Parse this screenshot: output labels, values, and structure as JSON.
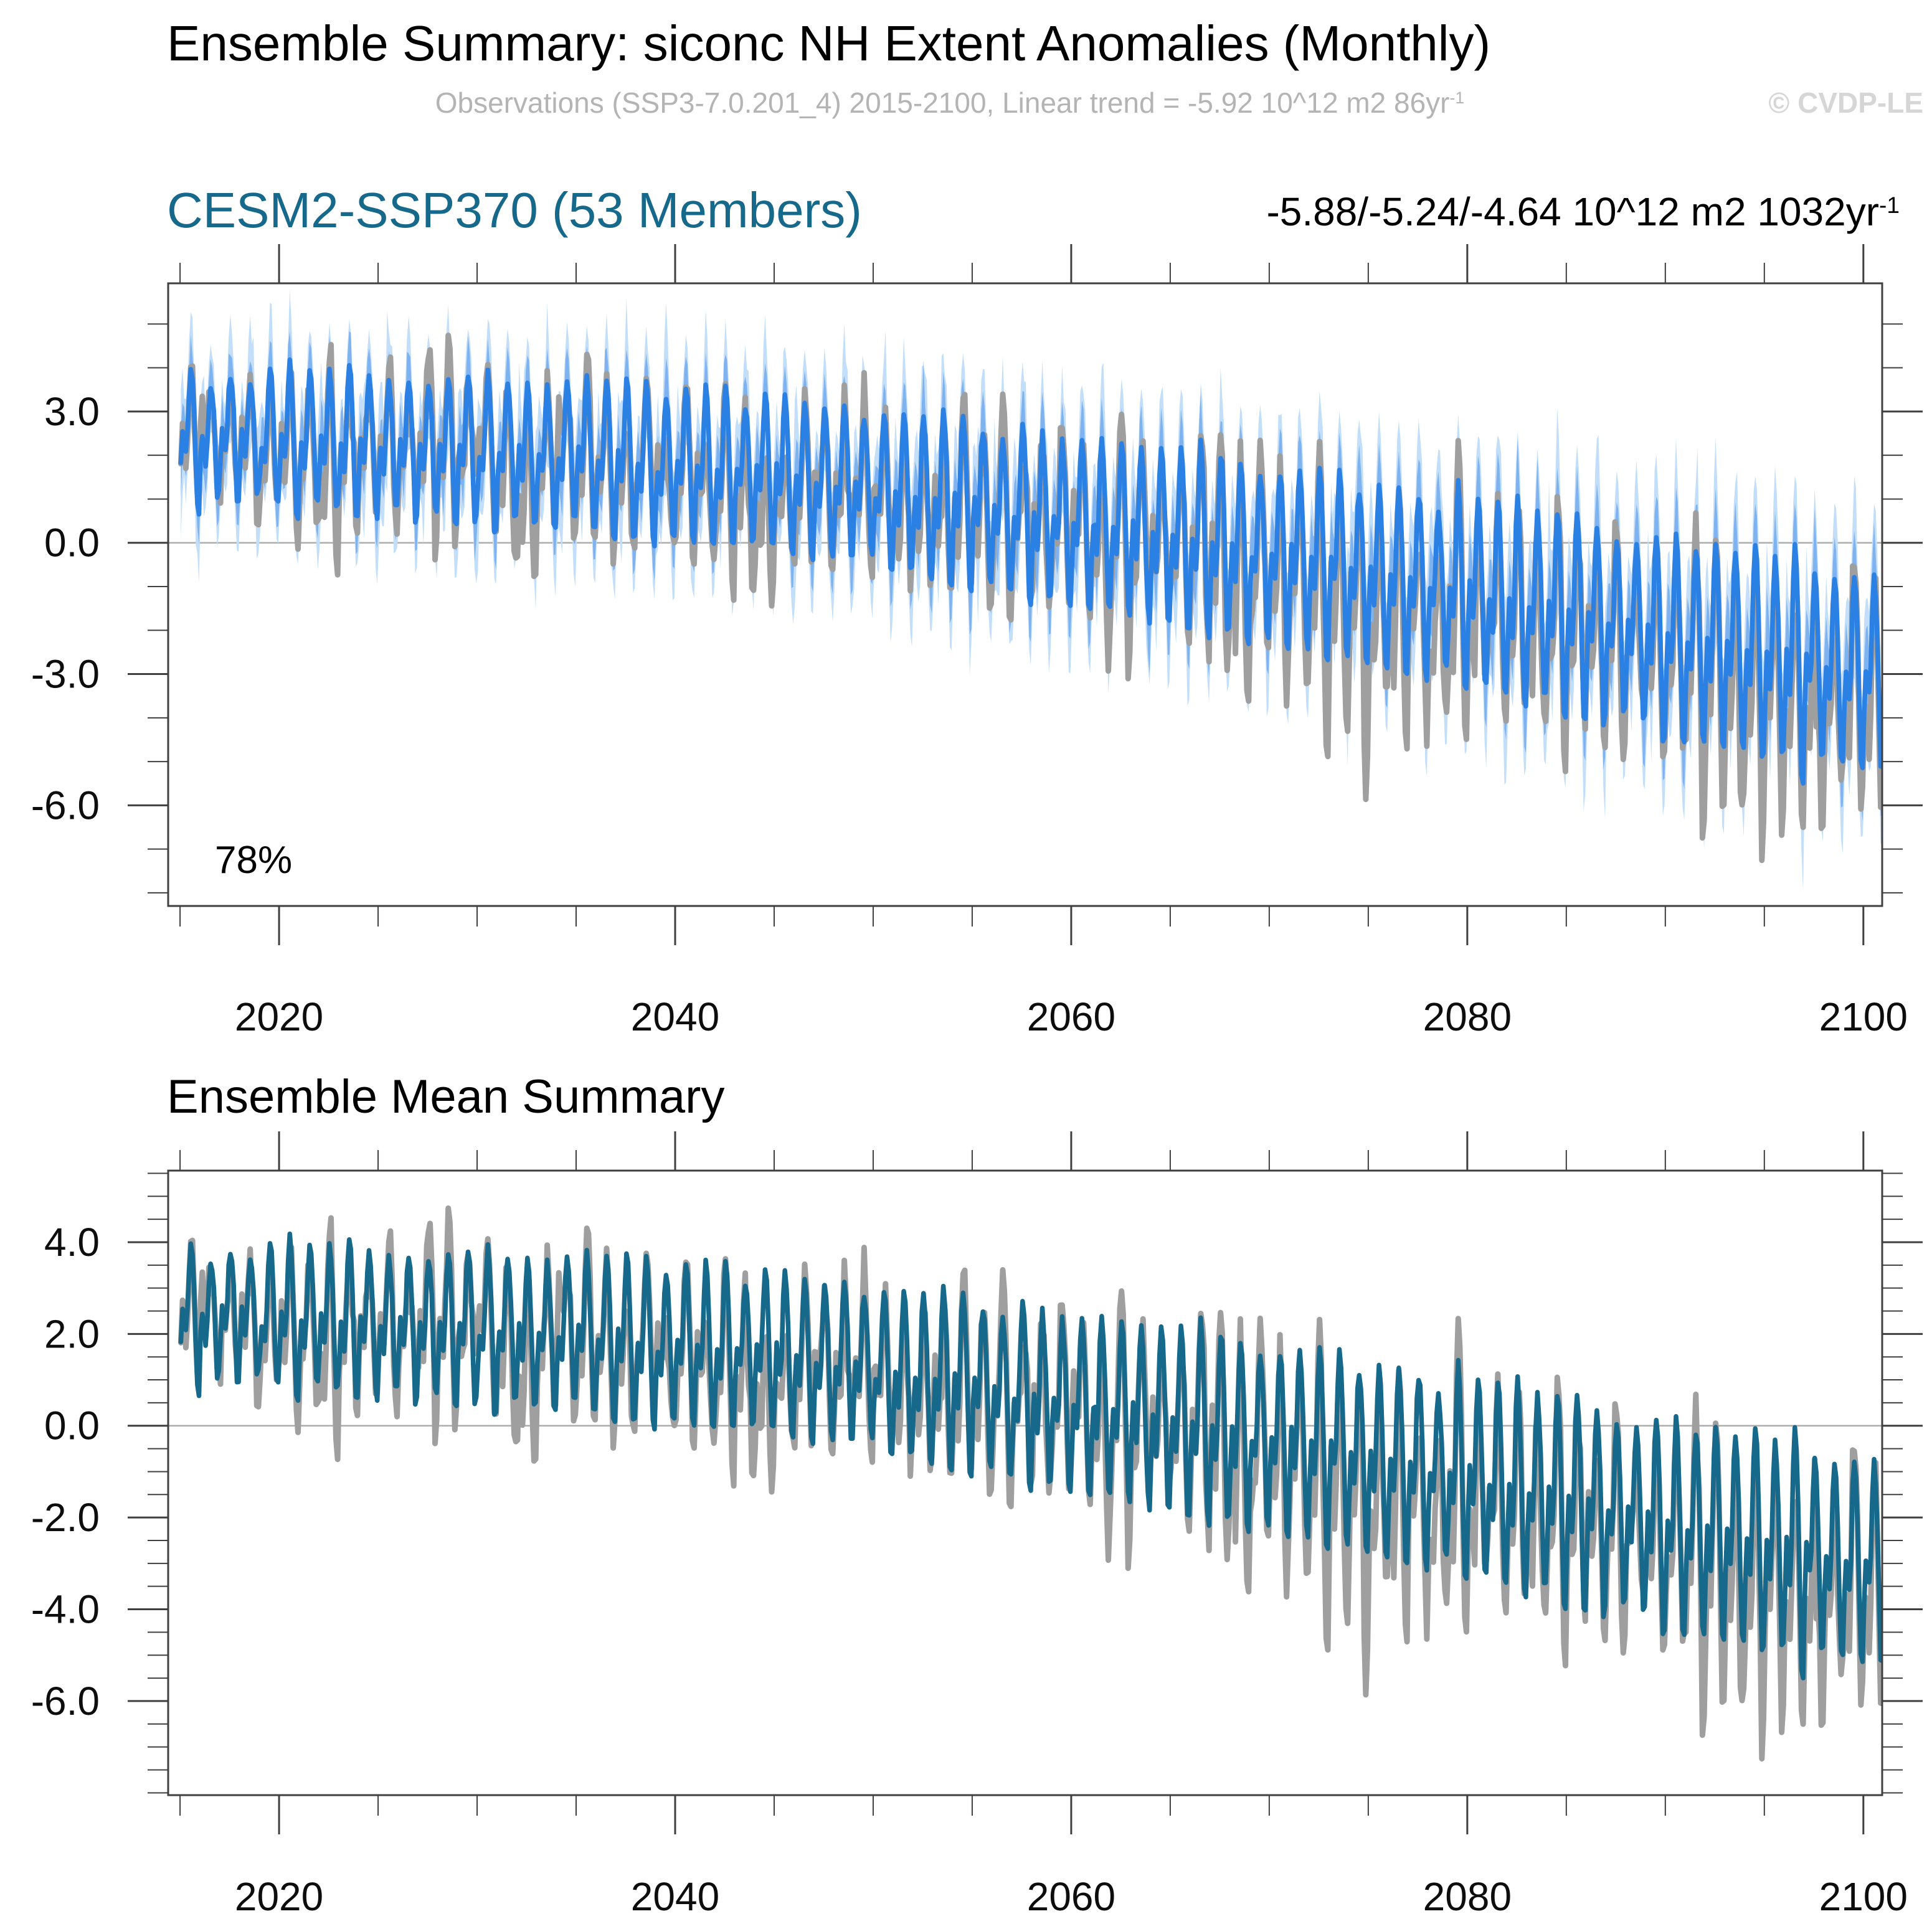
{
  "header": {
    "title": "Ensemble Summary: siconc NH Extent Anomalies (Monthly)",
    "subtitle": "Observations (SSP3-7.0.201_4) 2015-2100, Linear trend = -5.92 10^12 m2 86yr",
    "subtitle_sup": "-1",
    "watermark": "© CVDP-LE",
    "trend_text": "-5.88/-5.24/-4.64 10^12 m2 1032yr",
    "trend_sup": "-1"
  },
  "chart_data": {
    "type": "line",
    "title": "Ensemble Summary: siconc NH Extent Anomalies (Monthly)",
    "x_unit": "year",
    "x_start": 2015,
    "x_end": 2101,
    "points_per_year": 12,
    "xlim": [
      2014.4,
      2100.95
    ],
    "xticks": [
      2020,
      2040,
      2060,
      2080,
      2100
    ],
    "xtick_minor_step": 5,
    "grid": false,
    "legend": "none",
    "season_harmonics": [
      [
        1,
        0.62,
        -1.35
      ],
      [
        2,
        0.38,
        0.75
      ],
      [
        3,
        0.12,
        0.1
      ]
    ],
    "series": {
      "observations": {
        "label": "Observations (SSP3-7.0.201_4)",
        "color": "#9F9F9F",
        "line_width": 9,
        "trend_per_86yr": -5.92,
        "base_start": 2.4,
        "base_end": -3.55,
        "base_curve": 1.45,
        "amp_start": 1.55,
        "amp_end": 2.55,
        "amp_jitter": 0.2,
        "noise_sigma": 0.34,
        "noise_rho": 0.55,
        "spike_prob": 0.035,
        "seed": 13,
        "bumps": [
          {
            "c": 2029,
            "w": 2.2,
            "a": 0.55
          },
          {
            "c": 2032.2,
            "w": 0.9,
            "a": -0.9
          },
          {
            "c": 2044.8,
            "w": 1.2,
            "a": -0.8
          },
          {
            "c": 2047,
            "w": 3,
            "a": 0.45
          },
          {
            "c": 2057,
            "w": 7,
            "a": 0.5
          },
          {
            "c": 2065,
            "w": 3,
            "a": 0.45
          },
          {
            "c": 2075.5,
            "w": 2.5,
            "a": -0.75
          },
          {
            "c": 2085,
            "w": 2,
            "a": 0.35
          },
          {
            "c": 2096,
            "w": 3,
            "a": -0.5
          }
        ]
      },
      "ensemble_mean": {
        "label": "CESM2-SSP370 ensemble mean (53 members)",
        "trend_range_per_86yr": "-5.88/-5.24/-4.64",
        "base_start": 2.4,
        "base_end": -3.0,
        "base_curve": 1.6,
        "amp_start": 1.5,
        "amp_end": 2.2,
        "amp_jitter": 0.07,
        "noise_sigma": 0.1,
        "noise_rho": 0.4,
        "spike_prob": 0,
        "seed": 7,
        "bumps": [
          {
            "c": 2045,
            "w": 12,
            "a": 0.15
          },
          {
            "c": 2090,
            "w": 10,
            "a": -0.1
          }
        ]
      }
    },
    "band": {
      "seed": 21,
      "outer": {
        "start": 0.85,
        "end": 1.55,
        "spike": 0.4,
        "color": "#C2DEF9"
      },
      "inner": {
        "start": 0.5,
        "end": 0.95,
        "spike": 0.18,
        "color": "#7FB3F0"
      }
    },
    "panels": [
      {
        "name": "ensemble-summary",
        "heading": "CESM2-SSP370 (53 Members)",
        "ylim": [
          -8.3,
          5.93
        ],
        "yticks": [
          3,
          0,
          -3,
          -6
        ],
        "ytick_labels": [
          "3.0",
          "0.0",
          "-3.0",
          "-6.0"
        ],
        "ytick_minor_step": 1,
        "annotation": "78%",
        "mean_color": "#2B80E3",
        "mean_width": 7.5,
        "show_band": true,
        "x_label_dy": 200
      },
      {
        "name": "ensemble-mean-summary",
        "heading": "Ensemble Mean Summary",
        "ylim": [
          -8.05,
          5.56
        ],
        "yticks": [
          4,
          2,
          0,
          -2,
          -4,
          -6
        ],
        "ytick_labels": [
          "4.0",
          "2.0",
          "0.0",
          "-2.0",
          "-4.0",
          "-6.0"
        ],
        "ytick_minor_step": 0.5,
        "annotation": "",
        "mean_color": "#17698C",
        "mean_width": 7.5,
        "show_band": false,
        "x_label_dy": 185
      }
    ],
    "zero_line_color": "#ADADAD",
    "frame_color": "#3F3F3F",
    "tick_label_color": "#0d0d0d"
  }
}
